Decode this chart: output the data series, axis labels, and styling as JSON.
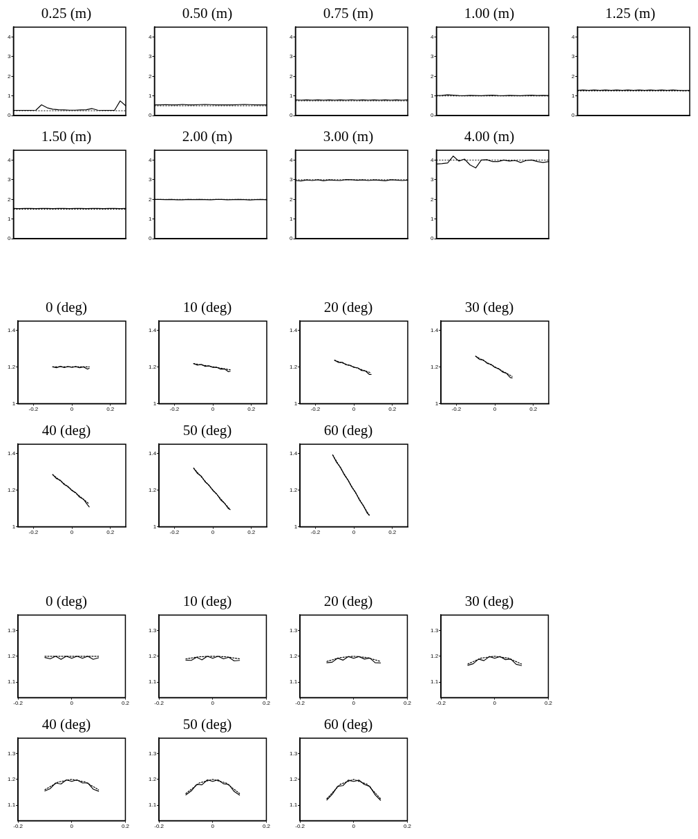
{
  "chart_data": [
    {
      "type": "line",
      "title": "0.25 (m)",
      "categories": [
        null,
        null,
        null,
        null,
        null,
        null,
        null,
        null,
        null,
        null,
        null,
        null,
        null,
        null,
        null,
        null,
        null,
        null,
        null,
        null,
        null
      ],
      "series": [
        {
          "color": "#000000",
          "line_style": "solid",
          "values": [
            0.27,
            0.27,
            0.27,
            0.27,
            0.28,
            0.55,
            0.4,
            0.33,
            0.3,
            0.29,
            0.28,
            0.28,
            0.29,
            0.3,
            0.36,
            0.28,
            0.27,
            0.27,
            0.27,
            0.75,
            0.5
          ]
        }
      ],
      "ref_lines": [
        {
          "axis": "y",
          "value": 0.25,
          "color": "#000000",
          "line_style": "dotted"
        }
      ],
      "ylim": [
        0,
        4.5
      ],
      "yticks": [
        0,
        1,
        2,
        3,
        4
      ],
      "tick_labels": "y"
    },
    {
      "type": "line",
      "title": "0.50 (m)",
      "categories": [
        null,
        null,
        null,
        null,
        null,
        null,
        null,
        null,
        null,
        null,
        null,
        null,
        null,
        null,
        null,
        null,
        null,
        null,
        null,
        null,
        null
      ],
      "series": [
        {
          "color": "#000000",
          "line_style": "solid",
          "values": [
            0.55,
            0.55,
            0.56,
            0.55,
            0.55,
            0.57,
            0.55,
            0.55,
            0.56,
            0.57,
            0.56,
            0.55,
            0.55,
            0.55,
            0.55,
            0.56,
            0.57,
            0.56,
            0.55,
            0.55,
            0.55
          ]
        }
      ],
      "ref_lines": [
        {
          "axis": "y",
          "value": 0.5,
          "color": "#000000",
          "line_style": "dotted"
        }
      ],
      "ylim": [
        0,
        4.5
      ],
      "yticks": [
        0,
        1,
        2,
        3,
        4
      ],
      "tick_labels": "y"
    },
    {
      "type": "line",
      "title": "0.75 (m)",
      "categories": [
        null,
        null,
        null,
        null,
        null,
        null,
        null,
        null,
        null,
        null,
        null,
        null,
        null,
        null,
        null,
        null,
        null,
        null,
        null,
        null,
        null
      ],
      "series": [
        {
          "color": "#000000",
          "line_style": "solid",
          "values": [
            0.8,
            0.79,
            0.8,
            0.79,
            0.8,
            0.79,
            0.8,
            0.79,
            0.8,
            0.79,
            0.8,
            0.79,
            0.8,
            0.79,
            0.8,
            0.79,
            0.8,
            0.79,
            0.8,
            0.79,
            0.8
          ]
        }
      ],
      "ref_lines": [
        {
          "axis": "y",
          "value": 0.75,
          "color": "#000000",
          "line_style": "dotted"
        }
      ],
      "ylim": [
        0,
        4.5
      ],
      "yticks": [
        0,
        1,
        2,
        3,
        4
      ],
      "tick_labels": "y"
    },
    {
      "type": "line",
      "title": "1.00 (m)",
      "categories": [
        null,
        null,
        null,
        null,
        null,
        null,
        null,
        null,
        null,
        null,
        null,
        null,
        null,
        null,
        null,
        null,
        null,
        null,
        null,
        null,
        null
      ],
      "series": [
        {
          "color": "#000000",
          "line_style": "solid",
          "values": [
            1.02,
            1.03,
            1.06,
            1.04,
            1.02,
            1.01,
            1.03,
            1.02,
            1.01,
            1.03,
            1.04,
            1.02,
            1.01,
            1.03,
            1.02,
            1.01,
            1.03,
            1.04,
            1.02,
            1.03,
            1.02
          ]
        }
      ],
      "ref_lines": [
        {
          "axis": "y",
          "value": 1,
          "color": "#000000",
          "line_style": "dotted"
        }
      ],
      "ylim": [
        0,
        4.5
      ],
      "yticks": [
        0,
        1,
        2,
        3,
        4
      ],
      "tick_labels": "y"
    },
    {
      "type": "line",
      "title": "1.25 (m)",
      "categories": [
        null,
        null,
        null,
        null,
        null,
        null,
        null,
        null,
        null,
        null,
        null,
        null,
        null,
        null,
        null,
        null,
        null,
        null,
        null,
        null,
        null
      ],
      "series": [
        {
          "color": "#000000",
          "line_style": "solid",
          "values": [
            1.29,
            1.3,
            1.29,
            1.3,
            1.29,
            1.3,
            1.29,
            1.3,
            1.29,
            1.3,
            1.29,
            1.3,
            1.29,
            1.3,
            1.29,
            1.3,
            1.29,
            1.3,
            1.29,
            1.28,
            1.29
          ]
        }
      ],
      "ref_lines": [
        {
          "axis": "y",
          "value": 1.25,
          "color": "#000000",
          "line_style": "dotted"
        }
      ],
      "ylim": [
        0,
        4.5
      ],
      "yticks": [
        0,
        1,
        2,
        3,
        4
      ],
      "tick_labels": "y"
    },
    {
      "type": "line",
      "title": "1.50 (m)",
      "categories": [
        null,
        null,
        null,
        null,
        null,
        null,
        null,
        null,
        null,
        null,
        null,
        null,
        null,
        null,
        null,
        null,
        null,
        null,
        null,
        null,
        null
      ],
      "series": [
        {
          "color": "#000000",
          "line_style": "solid",
          "values": [
            1.54,
            1.53,
            1.54,
            1.54,
            1.53,
            1.54,
            1.54,
            1.53,
            1.54,
            1.54,
            1.53,
            1.54,
            1.54,
            1.53,
            1.54,
            1.54,
            1.53,
            1.54,
            1.54,
            1.53,
            1.54
          ]
        }
      ],
      "ref_lines": [
        {
          "axis": "y",
          "value": 1.5,
          "color": "#000000",
          "line_style": "dotted"
        }
      ],
      "ylim": [
        0,
        4.5
      ],
      "yticks": [
        0,
        1,
        2,
        3,
        4
      ],
      "tick_labels": "y"
    },
    {
      "type": "line",
      "title": "2.00 (m)",
      "categories": [
        null,
        null,
        null,
        null,
        null,
        null,
        null,
        null,
        null,
        null,
        null,
        null,
        null,
        null,
        null,
        null,
        null,
        null,
        null,
        null,
        null
      ],
      "series": [
        {
          "color": "#000000",
          "line_style": "solid",
          "values": [
            2.0,
            2.0,
            1.99,
            2.0,
            1.98,
            1.98,
            2.0,
            1.99,
            2.0,
            1.99,
            1.98,
            2.0,
            2.0,
            1.98,
            1.99,
            2.0,
            1.99,
            1.97,
            1.99,
            2.0,
            1.98
          ]
        }
      ],
      "ref_lines": [
        {
          "axis": "y",
          "value": 2,
          "color": "#000000",
          "line_style": "dotted"
        }
      ],
      "ylim": [
        0,
        4.5
      ],
      "yticks": [
        0,
        1,
        2,
        3,
        4
      ],
      "tick_labels": "y"
    },
    {
      "type": "line",
      "title": "3.00 (m)",
      "categories": [
        null,
        null,
        null,
        null,
        null,
        null,
        null,
        null,
        null,
        null,
        null,
        null,
        null,
        null,
        null,
        null,
        null,
        null,
        null,
        null,
        null
      ],
      "series": [
        {
          "color": "#000000",
          "line_style": "solid",
          "values": [
            2.96,
            2.94,
            2.99,
            2.96,
            3.0,
            2.95,
            2.99,
            2.97,
            2.96,
            3.01,
            3.0,
            2.97,
            2.99,
            2.96,
            2.99,
            2.97,
            2.95,
            3.0,
            2.98,
            2.96,
            2.98
          ]
        }
      ],
      "ref_lines": [
        {
          "axis": "y",
          "value": 3,
          "color": "#000000",
          "line_style": "dotted"
        }
      ],
      "ylim": [
        0,
        4.5
      ],
      "yticks": [
        0,
        1,
        2,
        3,
        4
      ],
      "tick_labels": "y"
    },
    {
      "type": "line",
      "title": "4.00 (m)",
      "categories": [
        null,
        null,
        null,
        null,
        null,
        null,
        null,
        null,
        null,
        null,
        null,
        null,
        null,
        null,
        null,
        null,
        null,
        null,
        null,
        null,
        null
      ],
      "series": [
        {
          "color": "#000000",
          "line_style": "solid",
          "values": [
            3.8,
            3.82,
            3.85,
            4.2,
            3.95,
            4.05,
            3.75,
            3.6,
            4.0,
            4.02,
            3.92,
            3.92,
            4.0,
            3.95,
            3.98,
            3.88,
            3.98,
            4.0,
            3.92,
            3.88,
            3.92
          ]
        }
      ],
      "ref_lines": [
        {
          "axis": "y",
          "value": 4,
          "color": "#000000",
          "line_style": "dotted"
        }
      ],
      "ylim": [
        0,
        4.5
      ],
      "yticks": [
        0,
        1,
        2,
        3,
        4
      ],
      "tick_labels": "y"
    },
    {
      "type": "line",
      "title": "0 (deg)",
      "series": [
        {
          "color": "#000000",
          "line_style": "solid",
          "x": [
            -0.1,
            -0.08,
            -0.06,
            -0.04,
            -0.02,
            0,
            0.02,
            0.04,
            0.06,
            0.08,
            0.09
          ],
          "values": [
            1.2,
            1.195,
            1.203,
            1.196,
            1.202,
            1.197,
            1.202,
            1.195,
            1.2,
            1.188,
            1.192
          ]
        },
        {
          "color": "#000000",
          "line_style": "dotted",
          "x": [
            -0.1,
            0.09
          ],
          "values": [
            1.2,
            1.2
          ]
        }
      ],
      "xlim": [
        -0.28,
        0.28
      ],
      "xticks": [
        -0.2,
        0,
        0.2
      ],
      "ylim": [
        1,
        1.45
      ],
      "yticks": [
        1,
        1.2,
        1.4
      ]
    },
    {
      "type": "line",
      "title": "10 (deg)",
      "series": [
        {
          "color": "#000000",
          "line_style": "solid",
          "x": [
            -0.1,
            -0.08,
            -0.06,
            -0.04,
            -0.02,
            0,
            0.02,
            0.04,
            0.06,
            0.08,
            0.09
          ],
          "values": [
            1.218,
            1.209,
            1.214,
            1.203,
            1.206,
            1.197,
            1.198,
            1.188,
            1.189,
            1.174,
            1.176
          ]
        },
        {
          "color": "#000000",
          "line_style": "dotted",
          "x": [
            -0.1,
            0.09
          ],
          "values": [
            1.218,
            1.184
          ]
        }
      ],
      "xlim": [
        -0.28,
        0.28
      ],
      "xticks": [
        -0.2,
        0,
        0.2
      ],
      "ylim": [
        1,
        1.45
      ],
      "yticks": [
        1,
        1.2,
        1.4
      ]
    },
    {
      "type": "line",
      "title": "20 (deg)",
      "series": [
        {
          "color": "#000000",
          "line_style": "solid",
          "x": [
            -0.1,
            -0.08,
            -0.06,
            -0.04,
            -0.02,
            0,
            0.02,
            0.04,
            0.06,
            0.08,
            0.09
          ],
          "values": [
            1.236,
            1.224,
            1.225,
            1.211,
            1.209,
            1.197,
            1.195,
            1.18,
            1.178,
            1.159,
            1.159
          ]
        },
        {
          "color": "#000000",
          "line_style": "dotted",
          "x": [
            -0.1,
            0.09
          ],
          "values": [
            1.236,
            1.167
          ]
        }
      ],
      "xlim": [
        -0.28,
        0.28
      ],
      "xticks": [
        -0.2,
        0,
        0.2
      ],
      "ylim": [
        1,
        1.45
      ],
      "yticks": [
        1,
        1.2,
        1.4
      ]
    },
    {
      "type": "line",
      "title": "30 (deg)",
      "series": [
        {
          "color": "#000000",
          "line_style": "solid",
          "x": [
            -0.1,
            -0.08,
            -0.06,
            -0.04,
            -0.02,
            0,
            0.02,
            0.04,
            0.06,
            0.08,
            0.09
          ],
          "values": [
            1.258,
            1.241,
            1.238,
            1.219,
            1.214,
            1.197,
            1.19,
            1.172,
            1.165,
            1.142,
            1.14
          ]
        },
        {
          "color": "#000000",
          "line_style": "dotted",
          "x": [
            -0.1,
            0.09
          ],
          "values": [
            1.258,
            1.148
          ]
        }
      ],
      "xlim": [
        -0.28,
        0.28
      ],
      "xticks": [
        -0.2,
        0,
        0.2
      ],
      "ylim": [
        1,
        1.45
      ],
      "yticks": [
        1,
        1.2,
        1.4
      ]
    },
    {
      "type": "line",
      "title": "40 (deg)",
      "series": [
        {
          "color": "#000000",
          "line_style": "solid",
          "x": [
            -0.1,
            -0.08,
            -0.06,
            -0.04,
            -0.02,
            0,
            0.02,
            0.04,
            0.06,
            0.08,
            0.09
          ],
          "values": [
            1.284,
            1.262,
            1.253,
            1.23,
            1.219,
            1.197,
            1.185,
            1.161,
            1.15,
            1.121,
            1.108
          ]
        },
        {
          "color": "#000000",
          "line_style": "dotted",
          "x": [
            -0.1,
            0.09
          ],
          "values": [
            1.284,
            1.124
          ]
        }
      ],
      "xlim": [
        -0.28,
        0.28
      ],
      "xticks": [
        -0.2,
        0,
        0.2
      ],
      "ylim": [
        1,
        1.45
      ],
      "yticks": [
        1,
        1.2,
        1.4
      ]
    },
    {
      "type": "line",
      "title": "50 (deg)",
      "series": [
        {
          "color": "#000000",
          "line_style": "solid",
          "x": [
            -0.1,
            -0.08,
            -0.06,
            -0.04,
            -0.02,
            0,
            0.02,
            0.04,
            0.06,
            0.08,
            0.09
          ],
          "values": [
            1.319,
            1.29,
            1.275,
            1.244,
            1.226,
            1.197,
            1.178,
            1.147,
            1.128,
            1.099,
            1.093
          ]
        },
        {
          "color": "#000000",
          "line_style": "dotted",
          "x": [
            -0.1,
            0.09
          ],
          "values": [
            1.319,
            1.093
          ]
        }
      ],
      "xlim": [
        -0.28,
        0.28
      ],
      "xticks": [
        -0.2,
        0,
        0.2
      ],
      "ylim": [
        1,
        1.45
      ],
      "yticks": [
        1,
        1.2,
        1.4
      ]
    },
    {
      "type": "line",
      "title": "60 (deg)",
      "series": [
        {
          "color": "#000000",
          "line_style": "solid",
          "x": [
            -0.11,
            -0.09,
            -0.07,
            -0.05,
            -0.03,
            -0.01,
            0.01,
            0.03,
            0.05,
            0.07,
            0.08
          ],
          "values": [
            1.391,
            1.351,
            1.324,
            1.283,
            1.254,
            1.214,
            1.185,
            1.143,
            1.113,
            1.072,
            1.065
          ]
        },
        {
          "color": "#000000",
          "line_style": "dotted",
          "x": [
            -0.11,
            0.08
          ],
          "values": [
            1.391,
            1.061
          ]
        }
      ],
      "xlim": [
        -0.28,
        0.28
      ],
      "xticks": [
        -0.2,
        0,
        0.2
      ],
      "ylim": [
        1,
        1.45
      ],
      "yticks": [
        1,
        1.2,
        1.4
      ]
    },
    {
      "type": "line",
      "title": "0 (deg)",
      "series": [
        {
          "color": "#000000",
          "line_style": "solid",
          "x": [
            -0.1,
            -0.08,
            -0.06,
            -0.04,
            -0.02,
            0,
            0.02,
            0.04,
            0.06,
            0.08,
            0.1
          ],
          "values": [
            1.195,
            1.19,
            1.2,
            1.188,
            1.2,
            1.192,
            1.2,
            1.192,
            1.2,
            1.188,
            1.194
          ]
        },
        {
          "color": "#000000",
          "line_style": "dotted",
          "x": [
            -0.1,
            -0.05,
            0,
            0.05,
            0.1
          ],
          "values": [
            1.2,
            1.2,
            1.2,
            1.2,
            1.2
          ]
        }
      ],
      "xlim": [
        -0.2,
        0.2
      ],
      "xticks": [
        -0.2,
        0,
        0.2
      ],
      "ylim": [
        1.04,
        1.36
      ],
      "yticks": [
        1.1,
        1.2,
        1.3
      ]
    },
    {
      "type": "line",
      "title": "10 (deg)",
      "series": [
        {
          "color": "#000000",
          "line_style": "solid",
          "x": [
            -0.1,
            -0.08,
            -0.06,
            -0.04,
            -0.02,
            0,
            0.02,
            0.04,
            0.06,
            0.08,
            0.1
          ],
          "values": [
            1.185,
            1.184,
            1.196,
            1.186,
            1.2,
            1.192,
            1.2,
            1.19,
            1.196,
            1.182,
            1.184
          ]
        },
        {
          "color": "#000000",
          "line_style": "dotted",
          "x": [
            -0.1,
            -0.05,
            0,
            0.05,
            0.1
          ],
          "values": [
            1.19,
            1.198,
            1.2,
            1.198,
            1.19
          ]
        }
      ],
      "xlim": [
        -0.2,
        0.2
      ],
      "xticks": [
        -0.2,
        0,
        0.2
      ],
      "ylim": [
        1.04,
        1.36
      ],
      "yticks": [
        1.1,
        1.2,
        1.3
      ]
    },
    {
      "type": "line",
      "title": "20 (deg)",
      "series": [
        {
          "color": "#000000",
          "line_style": "solid",
          "x": [
            -0.1,
            -0.08,
            -0.06,
            -0.04,
            -0.02,
            0,
            0.02,
            0.04,
            0.06,
            0.08,
            0.1
          ],
          "values": [
            1.175,
            1.177,
            1.193,
            1.185,
            1.199,
            1.192,
            1.199,
            1.189,
            1.193,
            1.175,
            1.174
          ]
        },
        {
          "color": "#000000",
          "line_style": "dotted",
          "x": [
            -0.1,
            -0.05,
            0,
            0.05,
            0.1
          ],
          "values": [
            1.18,
            1.195,
            1.2,
            1.195,
            1.18
          ]
        }
      ],
      "xlim": [
        -0.2,
        0.2
      ],
      "xticks": [
        -0.2,
        0,
        0.2
      ],
      "ylim": [
        1.04,
        1.36
      ],
      "yticks": [
        1.1,
        1.2,
        1.3
      ]
    },
    {
      "type": "line",
      "title": "30 (deg)",
      "series": [
        {
          "color": "#000000",
          "line_style": "solid",
          "x": [
            -0.1,
            -0.08,
            -0.06,
            -0.04,
            -0.02,
            0,
            0.02,
            0.04,
            0.06,
            0.08,
            0.1
          ],
          "values": [
            1.165,
            1.171,
            1.189,
            1.183,
            1.199,
            1.192,
            1.199,
            1.187,
            1.189,
            1.169,
            1.164
          ]
        },
        {
          "color": "#000000",
          "line_style": "dotted",
          "x": [
            -0.1,
            -0.05,
            0,
            0.05,
            0.1
          ],
          "values": [
            1.17,
            1.193,
            1.2,
            1.193,
            1.17
          ]
        }
      ],
      "xlim": [
        -0.2,
        0.2
      ],
      "xticks": [
        -0.2,
        0,
        0.2
      ],
      "ylim": [
        1.04,
        1.36
      ],
      "yticks": [
        1.1,
        1.2,
        1.3
      ]
    },
    {
      "type": "line",
      "title": "40 (deg)",
      "series": [
        {
          "color": "#000000",
          "line_style": "solid",
          "x": [
            -0.1,
            -0.08,
            -0.06,
            -0.04,
            -0.02,
            0,
            0.02,
            0.04,
            0.06,
            0.08,
            0.1
          ],
          "values": [
            1.155,
            1.164,
            1.186,
            1.182,
            1.198,
            1.192,
            1.198,
            1.186,
            1.186,
            1.162,
            1.154
          ]
        },
        {
          "color": "#000000",
          "line_style": "dotted",
          "x": [
            -0.1,
            -0.05,
            0,
            0.05,
            0.1
          ],
          "values": [
            1.16,
            1.19,
            1.2,
            1.19,
            1.16
          ]
        }
      ],
      "xlim": [
        -0.2,
        0.2
      ],
      "xticks": [
        -0.2,
        0,
        0.2
      ],
      "ylim": [
        1.04,
        1.36
      ],
      "yticks": [
        1.1,
        1.2,
        1.3
      ]
    },
    {
      "type": "line",
      "title": "50 (deg)",
      "series": [
        {
          "color": "#000000",
          "line_style": "solid",
          "x": [
            -0.1,
            -0.08,
            -0.06,
            -0.04,
            -0.02,
            0,
            0.02,
            0.04,
            0.06,
            0.08,
            0.1
          ],
          "values": [
            1.14,
            1.155,
            1.18,
            1.179,
            1.198,
            1.192,
            1.198,
            1.183,
            1.18,
            1.153,
            1.139
          ]
        },
        {
          "color": "#000000",
          "line_style": "dotted",
          "x": [
            -0.1,
            -0.05,
            0,
            0.05,
            0.1
          ],
          "values": [
            1.145,
            1.186,
            1.2,
            1.186,
            1.145
          ]
        }
      ],
      "xlim": [
        -0.2,
        0.2
      ],
      "xticks": [
        -0.2,
        0,
        0.2
      ],
      "ylim": [
        1.04,
        1.36
      ],
      "yticks": [
        1.1,
        1.2,
        1.3
      ]
    },
    {
      "type": "line",
      "title": "60 (deg)",
      "series": [
        {
          "color": "#000000",
          "line_style": "solid",
          "x": [
            -0.1,
            -0.08,
            -0.06,
            -0.04,
            -0.02,
            0,
            0.02,
            0.04,
            0.06,
            0.08,
            0.1
          ],
          "values": [
            1.12,
            1.142,
            1.173,
            1.176,
            1.197,
            1.192,
            1.197,
            1.18,
            1.173,
            1.14,
            1.119
          ]
        },
        {
          "color": "#000000",
          "line_style": "dotted",
          "x": [
            -0.1,
            -0.05,
            0,
            0.05,
            0.1
          ],
          "values": [
            1.125,
            1.181,
            1.2,
            1.181,
            1.125
          ]
        }
      ],
      "xlim": [
        -0.2,
        0.2
      ],
      "xticks": [
        -0.2,
        0,
        0.2
      ],
      "ylim": [
        1.04,
        1.36
      ],
      "yticks": [
        1.1,
        1.2,
        1.3
      ]
    }
  ]
}
